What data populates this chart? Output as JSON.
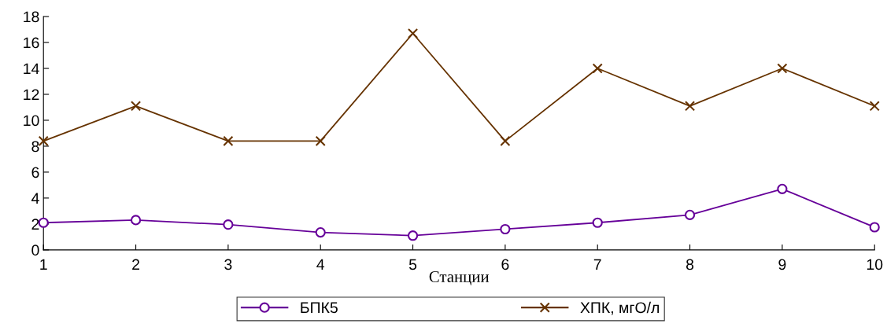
{
  "chart_data": {
    "type": "line",
    "xlabel": "Станции",
    "x": [
      1,
      2,
      3,
      4,
      5,
      6,
      7,
      8,
      9,
      10
    ],
    "xlim": [
      1,
      10
    ],
    "xticks": [
      1,
      2,
      3,
      4,
      5,
      6,
      7,
      8,
      9,
      10
    ],
    "ylim": [
      0,
      18
    ],
    "yticks": [
      0,
      2,
      4,
      6,
      8,
      10,
      12,
      14,
      16,
      18
    ],
    "grid": false,
    "legend": "bottom",
    "series": [
      {
        "name": "БПК5",
        "color": "#660099",
        "marker": "circle",
        "values": [
          2.1,
          2.3,
          1.95,
          1.35,
          1.1,
          1.6,
          2.1,
          2.7,
          4.7,
          1.75
        ]
      },
      {
        "name": "ХПК, мгО/л",
        "color": "#663300",
        "marker": "cross",
        "values": [
          8.4,
          11.1,
          8.4,
          8.4,
          16.7,
          8.4,
          14.0,
          11.1,
          14.0,
          11.1
        ]
      }
    ]
  }
}
